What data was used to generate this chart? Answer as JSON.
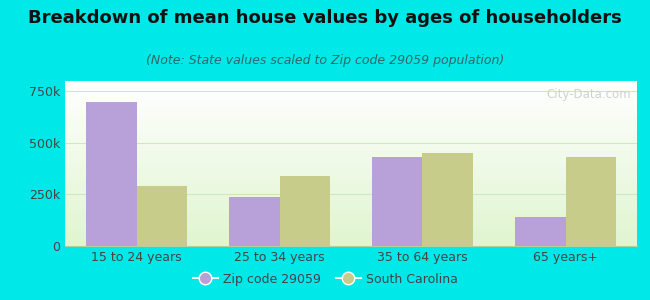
{
  "title": "Breakdown of mean house values by ages of householders",
  "subtitle": "(Note: State values scaled to Zip code 29059 population)",
  "categories": [
    "15 to 24 years",
    "25 to 34 years",
    "35 to 64 years",
    "65 years+"
  ],
  "zip_values": [
    700000,
    240000,
    430000,
    140000
  ],
  "state_values": [
    290000,
    340000,
    450000,
    430000
  ],
  "zip_color": "#b8a0d8",
  "state_color": "#c8cc8a",
  "background_outer": "#00e8e8",
  "background_inner_top": "#f0fce8",
  "background_inner_bottom": "#e0f5d0",
  "ylim": [
    0,
    800000
  ],
  "yticks": [
    0,
    250000,
    500000,
    750000
  ],
  "ytick_labels": [
    "0",
    "250k",
    "500k",
    "750k"
  ],
  "legend_zip_label": "Zip code 29059",
  "legend_state_label": "South Carolina",
  "bar_width": 0.35,
  "title_fontsize": 13,
  "subtitle_fontsize": 9,
  "tick_fontsize": 9,
  "legend_fontsize": 9,
  "watermark": "City-Data.com",
  "grid_color": "#d0e8c0",
  "spine_color": "#b0d0a0"
}
